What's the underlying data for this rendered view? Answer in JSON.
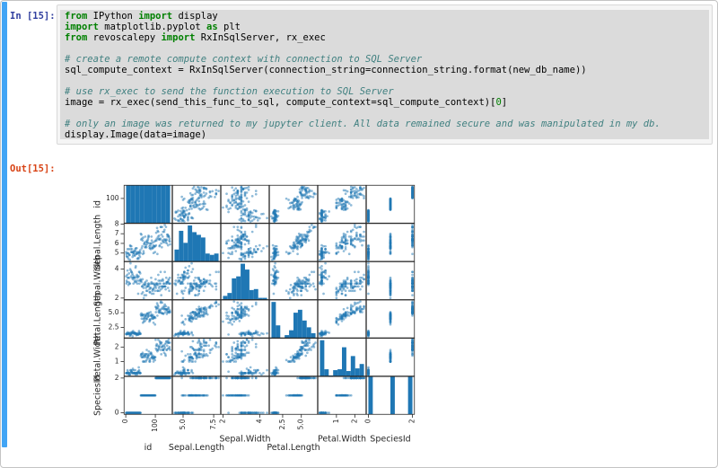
{
  "notebook": {
    "input_prompt": "In [15]:",
    "output_prompt": "Out[15]:",
    "code_lines": [
      [
        [
          "kw",
          "from"
        ],
        [
          "pl",
          " IPython "
        ],
        [
          "kw",
          "import"
        ],
        [
          "pl",
          " display"
        ]
      ],
      [
        [
          "kw",
          "import"
        ],
        [
          "pl",
          " matplotlib.pyplot "
        ],
        [
          "kw",
          "as"
        ],
        [
          "pl",
          " plt"
        ]
      ],
      [
        [
          "kw",
          "from"
        ],
        [
          "pl",
          " revoscalepy "
        ],
        [
          "kw",
          "import"
        ],
        [
          "pl",
          " RxInSqlServer, rx_exec"
        ]
      ],
      [],
      [
        [
          "cm",
          "# create a remote compute context with connection to SQL Server"
        ]
      ],
      [
        [
          "pl",
          "sql_compute_context = RxInSqlServer(connection_string=connection_string.format(new_db_name))"
        ]
      ],
      [],
      [
        [
          "cm",
          "# use rx_exec to send the function execution to SQL Server"
        ]
      ],
      [
        [
          "pl",
          "image = rx_exec(send_this_func_to_sql, compute_context=sql_compute_context)["
        ],
        [
          "num",
          "0"
        ],
        [
          "pl",
          "]"
        ]
      ],
      [],
      [
        [
          "cm",
          "# only an image was returned to my jupyter client. All data remained secure and was manipulated in my db."
        ]
      ],
      [
        [
          "pl",
          "display.Image(data=image)"
        ]
      ]
    ]
  },
  "colors": {
    "selected_cell_bar": "#42A5F5",
    "in_prompt": "#303F9F",
    "out_prompt": "#D84315",
    "keyword": "#008000",
    "comment": "#408080",
    "point": "#1f77b4",
    "frame": "#262626",
    "label": "#262626"
  },
  "chart_data": {
    "type": "scatter_matrix",
    "diagonal": "hist",
    "hist_bins": 10,
    "point_alpha": 0.5,
    "variables": [
      "id",
      "Sepal.Length",
      "Sepal.Width",
      "Petal.Length",
      "Petal.Width",
      "SpeciesId"
    ],
    "x_ticks": [
      {
        "values": [
          0,
          100
        ],
        "labels": [
          "0",
          "100"
        ]
      },
      {
        "values": [
          5.0,
          7.5
        ],
        "labels": [
          "5.0",
          "7.5"
        ]
      },
      {
        "values": [
          2,
          4
        ],
        "labels": [
          "2",
          "4"
        ]
      },
      {
        "values": [
          2.5,
          5.0
        ],
        "labels": [
          "2.5",
          "5.0"
        ]
      },
      {
        "values": [
          1,
          2
        ],
        "labels": [
          "1",
          "2"
        ]
      },
      {
        "values": [
          0,
          2
        ],
        "labels": [
          "0",
          "2"
        ]
      }
    ],
    "y_ticks": [
      {
        "values": [
          100
        ],
        "labels": [
          "100"
        ]
      },
      {
        "values": [
          5,
          6,
          7,
          8
        ],
        "labels": [
          "5",
          "6",
          "7",
          "8"
        ]
      },
      {
        "values": [
          2,
          4
        ],
        "labels": [
          "2",
          "4"
        ]
      },
      {
        "values": [
          2.5,
          5.0
        ],
        "labels": [
          "2.5",
          "5.0"
        ]
      },
      {
        "values": [
          1,
          2
        ],
        "labels": [
          "1",
          "2"
        ]
      },
      {
        "values": [
          0,
          2
        ],
        "labels": [
          "0",
          "2"
        ]
      }
    ],
    "id_range": [
      1,
      150
    ],
    "sepal_length": [
      5.1,
      4.9,
      4.7,
      4.6,
      5.0,
      5.4,
      4.6,
      5.0,
      4.4,
      4.9,
      5.4,
      4.8,
      4.8,
      4.3,
      5.8,
      5.7,
      5.4,
      5.1,
      5.7,
      5.1,
      5.4,
      5.1,
      4.6,
      5.1,
      4.8,
      5.0,
      5.0,
      5.2,
      5.2,
      4.7,
      4.8,
      5.4,
      5.2,
      5.5,
      4.9,
      5.0,
      5.5,
      4.9,
      4.4,
      5.1,
      5.0,
      4.5,
      4.4,
      5.0,
      5.1,
      4.8,
      5.1,
      4.6,
      5.3,
      5.0,
      7.0,
      6.4,
      6.9,
      5.5,
      6.5,
      5.7,
      6.3,
      4.9,
      6.6,
      5.2,
      5.0,
      5.9,
      6.0,
      6.1,
      5.6,
      6.7,
      5.6,
      5.8,
      6.2,
      5.6,
      5.9,
      6.1,
      6.3,
      6.1,
      6.4,
      6.6,
      6.8,
      6.7,
      6.0,
      5.7,
      5.5,
      5.5,
      5.8,
      6.0,
      5.4,
      6.0,
      6.7,
      6.3,
      5.6,
      5.5,
      5.5,
      6.1,
      5.8,
      5.0,
      5.6,
      5.7,
      5.7,
      6.2,
      5.1,
      5.7,
      6.3,
      5.8,
      7.1,
      6.3,
      6.5,
      7.6,
      4.9,
      7.3,
      6.7,
      7.2,
      6.5,
      6.4,
      6.8,
      5.7,
      5.8,
      6.4,
      6.5,
      7.7,
      7.7,
      6.0,
      6.9,
      5.6,
      7.7,
      6.3,
      6.7,
      7.2,
      6.2,
      6.1,
      6.4,
      7.2,
      7.4,
      7.9,
      6.4,
      6.3,
      6.1,
      7.7,
      6.3,
      6.4,
      6.0,
      6.9,
      6.7,
      6.9,
      5.8,
      6.8,
      6.7,
      6.7,
      6.3,
      6.5,
      6.2,
      5.9
    ],
    "sepal_width": [
      3.5,
      3.0,
      3.2,
      3.1,
      3.6,
      3.9,
      3.4,
      3.4,
      2.9,
      3.1,
      3.7,
      3.4,
      3.0,
      3.0,
      4.0,
      4.4,
      3.9,
      3.5,
      3.8,
      3.8,
      3.4,
      3.7,
      3.6,
      3.3,
      3.4,
      3.0,
      3.4,
      3.5,
      3.4,
      3.2,
      3.1,
      3.4,
      4.1,
      4.2,
      3.1,
      3.2,
      3.5,
      3.6,
      3.0,
      3.4,
      3.5,
      2.3,
      3.2,
      3.5,
      3.8,
      3.0,
      3.8,
      3.2,
      3.7,
      3.3,
      3.2,
      3.2,
      3.1,
      2.3,
      2.8,
      2.8,
      3.3,
      2.4,
      2.9,
      2.7,
      2.0,
      3.0,
      2.2,
      2.9,
      2.9,
      3.1,
      3.0,
      2.7,
      2.2,
      2.5,
      3.2,
      2.8,
      2.5,
      2.8,
      2.9,
      3.0,
      2.8,
      3.0,
      2.9,
      2.6,
      2.4,
      2.4,
      2.7,
      2.7,
      3.0,
      3.4,
      3.1,
      2.3,
      3.0,
      2.5,
      2.6,
      3.0,
      2.6,
      2.3,
      2.7,
      3.0,
      2.9,
      2.9,
      2.5,
      2.8,
      3.3,
      2.7,
      3.0,
      2.9,
      3.0,
      3.0,
      2.5,
      2.9,
      2.5,
      3.6,
      3.2,
      2.7,
      3.0,
      2.5,
      2.8,
      3.2,
      3.0,
      3.8,
      2.6,
      2.2,
      3.2,
      2.8,
      2.8,
      2.7,
      3.3,
      3.2,
      2.8,
      3.0,
      2.8,
      3.0,
      2.8,
      3.8,
      2.8,
      2.8,
      2.6,
      3.0,
      3.4,
      3.1,
      3.0,
      3.1,
      3.1,
      3.1,
      2.7,
      3.2,
      3.3,
      3.0,
      2.5,
      3.0,
      3.4,
      3.0
    ],
    "petal_length": [
      1.4,
      1.4,
      1.3,
      1.5,
      1.4,
      1.7,
      1.4,
      1.5,
      1.4,
      1.5,
      1.5,
      1.6,
      1.4,
      1.1,
      1.2,
      1.5,
      1.3,
      1.4,
      1.7,
      1.5,
      1.7,
      1.5,
      1.0,
      1.7,
      1.9,
      1.6,
      1.6,
      1.5,
      1.4,
      1.6,
      1.6,
      1.5,
      1.5,
      1.4,
      1.5,
      1.2,
      1.3,
      1.4,
      1.3,
      1.5,
      1.3,
      1.3,
      1.3,
      1.6,
      1.9,
      1.4,
      1.6,
      1.4,
      1.5,
      1.4,
      4.7,
      4.5,
      4.9,
      4.0,
      4.6,
      4.5,
      4.7,
      3.3,
      4.6,
      3.9,
      3.5,
      4.2,
      4.0,
      4.7,
      3.6,
      4.4,
      4.5,
      4.1,
      4.5,
      3.9,
      4.8,
      4.0,
      4.9,
      4.7,
      4.3,
      4.4,
      4.8,
      5.0,
      4.5,
      3.5,
      3.8,
      3.7,
      3.9,
      5.1,
      4.5,
      4.5,
      4.7,
      4.4,
      4.1,
      4.0,
      4.4,
      4.6,
      4.0,
      3.3,
      4.2,
      4.2,
      4.2,
      4.3,
      3.0,
      4.1,
      6.0,
      5.1,
      5.9,
      5.6,
      5.8,
      6.6,
      4.5,
      6.3,
      5.8,
      6.1,
      5.1,
      5.3,
      5.5,
      5.0,
      5.1,
      5.3,
      5.5,
      6.7,
      6.9,
      5.0,
      5.7,
      4.9,
      6.7,
      4.9,
      5.7,
      6.0,
      4.8,
      4.9,
      5.6,
      5.8,
      6.1,
      6.4,
      5.6,
      5.1,
      5.6,
      6.1,
      5.6,
      5.5,
      4.8,
      5.4,
      5.6,
      5.1,
      5.1,
      5.9,
      5.7,
      5.2,
      5.0,
      5.2,
      5.4,
      5.1
    ],
    "petal_width": [
      0.2,
      0.2,
      0.2,
      0.2,
      0.2,
      0.4,
      0.3,
      0.2,
      0.2,
      0.1,
      0.2,
      0.2,
      0.1,
      0.1,
      0.2,
      0.4,
      0.4,
      0.3,
      0.3,
      0.3,
      0.2,
      0.4,
      0.2,
      0.5,
      0.2,
      0.2,
      0.4,
      0.2,
      0.2,
      0.2,
      0.2,
      0.4,
      0.1,
      0.2,
      0.2,
      0.2,
      0.2,
      0.1,
      0.2,
      0.2,
      0.3,
      0.3,
      0.2,
      0.6,
      0.4,
      0.3,
      0.2,
      0.2,
      0.2,
      0.2,
      1.4,
      1.5,
      1.5,
      1.3,
      1.5,
      1.3,
      1.6,
      1.0,
      1.3,
      1.4,
      1.0,
      1.5,
      1.0,
      1.4,
      1.3,
      1.4,
      1.5,
      1.0,
      1.5,
      1.1,
      1.8,
      1.3,
      1.5,
      1.2,
      1.3,
      1.4,
      1.4,
      1.7,
      1.5,
      1.0,
      1.1,
      1.0,
      1.2,
      1.6,
      1.5,
      1.6,
      1.5,
      1.3,
      1.3,
      1.3,
      1.2,
      1.4,
      1.2,
      1.0,
      1.3,
      1.2,
      1.3,
      1.3,
      1.1,
      1.3,
      2.5,
      1.9,
      2.1,
      1.8,
      2.2,
      2.1,
      1.7,
      1.8,
      1.8,
      2.5,
      2.0,
      1.9,
      2.1,
      2.0,
      2.4,
      2.3,
      1.8,
      2.2,
      2.3,
      1.5,
      2.3,
      2.0,
      2.0,
      1.8,
      2.1,
      1.8,
      1.8,
      1.8,
      2.1,
      1.6,
      1.9,
      2.0,
      2.2,
      1.5,
      1.4,
      2.3,
      2.4,
      1.8,
      1.8,
      2.1,
      2.4,
      2.3,
      1.9,
      2.3,
      2.5,
      2.3,
      1.9,
      2.0,
      2.3,
      1.8
    ],
    "species_id": [
      0,
      0,
      0,
      0,
      0,
      0,
      0,
      0,
      0,
      0,
      0,
      0,
      0,
      0,
      0,
      0,
      0,
      0,
      0,
      0,
      0,
      0,
      0,
      0,
      0,
      0,
      0,
      0,
      0,
      0,
      0,
      0,
      0,
      0,
      0,
      0,
      0,
      0,
      0,
      0,
      0,
      0,
      0,
      0,
      0,
      0,
      0,
      0,
      0,
      0,
      1,
      1,
      1,
      1,
      1,
      1,
      1,
      1,
      1,
      1,
      1,
      1,
      1,
      1,
      1,
      1,
      1,
      1,
      1,
      1,
      1,
      1,
      1,
      1,
      1,
      1,
      1,
      1,
      1,
      1,
      1,
      1,
      1,
      1,
      1,
      1,
      1,
      1,
      1,
      1,
      1,
      1,
      1,
      1,
      1,
      1,
      1,
      1,
      1,
      1,
      2,
      2,
      2,
      2,
      2,
      2,
      2,
      2,
      2,
      2,
      2,
      2,
      2,
      2,
      2,
      2,
      2,
      2,
      2,
      2,
      2,
      2,
      2,
      2,
      2,
      2,
      2,
      2,
      2,
      2,
      2,
      2,
      2,
      2,
      2,
      2,
      2,
      2,
      2,
      2,
      2,
      2,
      2,
      2,
      2,
      2,
      2,
      2,
      2,
      2
    ]
  }
}
